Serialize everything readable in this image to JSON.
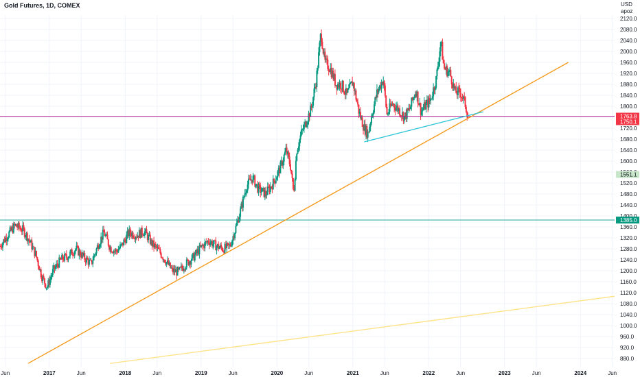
{
  "title": "Gold Futures, 1D, COMEX",
  "currency": "USD",
  "account": "apoz",
  "chart_data": {
    "type": "candlestick",
    "title": "Gold Futures, 1D, COMEX",
    "ylim": [
      860,
      2140
    ],
    "y_ticks": [
      880,
      920,
      960,
      1000,
      1040,
      1080,
      1120,
      1160,
      1200,
      1240,
      1280,
      1320,
      1360,
      1400,
      1440,
      1480,
      1520,
      1560,
      1600,
      1640,
      1680,
      1720,
      1760,
      1800,
      1840,
      1880,
      1920,
      1960,
      2000,
      2040,
      2080,
      2120
    ],
    "y_tick_labels": [
      "880.0",
      "920.0",
      "960.0",
      "1000.0",
      "1040.0",
      "1080.0",
      "1120.0",
      "1160.0",
      "1200.0",
      "1240.0",
      "1280.0",
      "1320.0",
      "1360.0",
      "1400.0",
      "1440.0",
      "1480.0",
      "1520.0",
      "1560.0",
      "1600.0",
      "1640.0",
      "1680.0",
      "1720.0",
      "1760.0",
      "1800.0",
      "1840.0",
      "1880.0",
      "1920.0",
      "1960.0",
      "2000.0",
      "2040.0",
      "2080.0",
      "2120.0"
    ],
    "x_ticks": [
      {
        "t": 2016.42,
        "label": "Jun",
        "bold": false
      },
      {
        "t": 2017.0,
        "label": "2017",
        "bold": true
      },
      {
        "t": 2017.42,
        "label": "Jun",
        "bold": false
      },
      {
        "t": 2018.0,
        "label": "2018",
        "bold": true
      },
      {
        "t": 2018.42,
        "label": "Jun",
        "bold": false
      },
      {
        "t": 2019.0,
        "label": "2019",
        "bold": true
      },
      {
        "t": 2019.42,
        "label": "Jun",
        "bold": false
      },
      {
        "t": 2020.0,
        "label": "2020",
        "bold": true
      },
      {
        "t": 2020.42,
        "label": "Jun",
        "bold": false
      },
      {
        "t": 2021.0,
        "label": "2021",
        "bold": true
      },
      {
        "t": 2021.42,
        "label": "Jun",
        "bold": false
      },
      {
        "t": 2022.0,
        "label": "2022",
        "bold": true
      },
      {
        "t": 2022.42,
        "label": "Jun",
        "bold": false
      },
      {
        "t": 2023.0,
        "label": "2023",
        "bold": true
      },
      {
        "t": 2023.42,
        "label": "Jun",
        "bold": false
      },
      {
        "t": 2024.0,
        "label": "2024",
        "bold": true
      },
      {
        "t": 2024.42,
        "label": "Jun",
        "bold": false
      }
    ],
    "xlim": [
      2016.35,
      2024.45
    ],
    "price_path": [
      [
        2016.35,
        1290
      ],
      [
        2016.45,
        1330
      ],
      [
        2016.55,
        1365
      ],
      [
        2016.65,
        1350
      ],
      [
        2016.72,
        1320
      ],
      [
        2016.82,
        1260
      ],
      [
        2016.9,
        1180
      ],
      [
        2016.97,
        1140
      ],
      [
        2017.05,
        1200
      ],
      [
        2017.15,
        1240
      ],
      [
        2017.25,
        1255
      ],
      [
        2017.35,
        1280
      ],
      [
        2017.45,
        1250
      ],
      [
        2017.55,
        1225
      ],
      [
        2017.65,
        1300
      ],
      [
        2017.72,
        1340
      ],
      [
        2017.8,
        1285
      ],
      [
        2017.88,
        1270
      ],
      [
        2017.95,
        1290
      ],
      [
        2018.05,
        1340
      ],
      [
        2018.15,
        1330
      ],
      [
        2018.25,
        1345
      ],
      [
        2018.35,
        1300
      ],
      [
        2018.45,
        1270
      ],
      [
        2018.55,
        1230
      ],
      [
        2018.62,
        1200
      ],
      [
        2018.7,
        1195
      ],
      [
        2018.8,
        1225
      ],
      [
        2018.9,
        1250
      ],
      [
        2019.0,
        1285
      ],
      [
        2019.1,
        1310
      ],
      [
        2019.2,
        1290
      ],
      [
        2019.3,
        1280
      ],
      [
        2019.38,
        1290
      ],
      [
        2019.45,
        1350
      ],
      [
        2019.52,
        1420
      ],
      [
        2019.6,
        1510
      ],
      [
        2019.68,
        1540
      ],
      [
        2019.75,
        1500
      ],
      [
        2019.85,
        1480
      ],
      [
        2019.95,
        1520
      ],
      [
        2020.05,
        1580
      ],
      [
        2020.12,
        1640
      ],
      [
        2020.18,
        1580
      ],
      [
        2020.22,
        1480
      ],
      [
        2020.26,
        1640
      ],
      [
        2020.32,
        1700
      ],
      [
        2020.38,
        1740
      ],
      [
        2020.45,
        1790
      ],
      [
        2020.52,
        1900
      ],
      [
        2020.58,
        2070
      ],
      [
        2020.63,
        1960
      ],
      [
        2020.7,
        1940
      ],
      [
        2020.78,
        1880
      ],
      [
        2020.85,
        1880
      ],
      [
        2020.92,
        1840
      ],
      [
        2021.0,
        1890
      ],
      [
        2021.08,
        1780
      ],
      [
        2021.15,
        1720
      ],
      [
        2021.2,
        1700
      ],
      [
        2021.25,
        1770
      ],
      [
        2021.32,
        1850
      ],
      [
        2021.4,
        1900
      ],
      [
        2021.45,
        1770
      ],
      [
        2021.52,
        1810
      ],
      [
        2021.6,
        1790
      ],
      [
        2021.68,
        1760
      ],
      [
        2021.75,
        1790
      ],
      [
        2021.83,
        1860
      ],
      [
        2021.9,
        1780
      ],
      [
        2021.95,
        1800
      ],
      [
        2022.02,
        1820
      ],
      [
        2022.1,
        1900
      ],
      [
        2022.16,
        2040
      ],
      [
        2022.2,
        1940
      ],
      [
        2022.28,
        1920
      ],
      [
        2022.35,
        1850
      ],
      [
        2022.42,
        1850
      ],
      [
        2022.48,
        1810
      ],
      [
        2022.52,
        1760
      ]
    ],
    "annotations": {
      "price_labels": [
        {
          "value": 1763.8,
          "label": "1763.8",
          "color": "#f23645"
        },
        {
          "value": 1750.1,
          "label": "1750.1",
          "color": "#f23645"
        },
        {
          "value": 1551.1,
          "label": "1551.1",
          "color": "#c8e6c9"
        },
        {
          "value": 1385.0,
          "label": "1385.0",
          "color": "#089981"
        }
      ],
      "horizontal_lines": [
        {
          "value": 1763.8,
          "color": "#b41e8c"
        },
        {
          "value": 1385.0,
          "color": "#26a69a"
        }
      ],
      "trend_lines": [
        {
          "from": [
            2016.72,
            862
          ],
          "to": [
            2023.84,
            1960
          ],
          "color": "#f59b1e"
        },
        {
          "from": [
            2017.8,
            862
          ],
          "to": [
            2024.45,
            1107
          ],
          "color": "#ffe38a"
        },
        {
          "from": [
            2021.15,
            1670
          ],
          "to": [
            2022.72,
            1780
          ],
          "color": "#2dc5d8"
        }
      ]
    }
  },
  "colors": {
    "up": "#089981",
    "down": "#f23645",
    "grid": "#f0f3fa",
    "text": "#131722"
  }
}
